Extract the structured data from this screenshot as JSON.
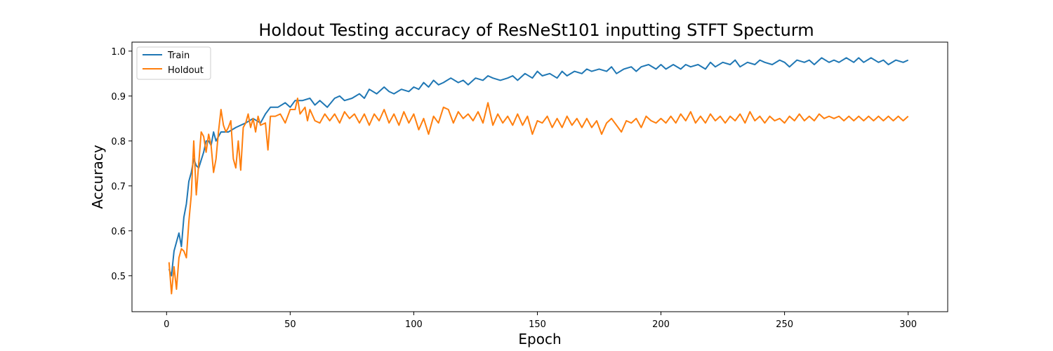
{
  "chart_data": {
    "type": "line",
    "title": "Holdout Testing accuracy of ResNeSt101 inputting STFT Specturm",
    "xlabel": "Epoch",
    "ylabel": "Accuracy",
    "xlim": [
      -14,
      316
    ],
    "ylim": [
      0.42,
      1.02
    ],
    "x_ticks": [
      0,
      50,
      100,
      150,
      200,
      250,
      300
    ],
    "y_ticks": [
      0.5,
      0.6,
      0.7,
      0.8,
      0.9,
      1.0
    ],
    "x_tick_labels": [
      "0",
      "50",
      "100",
      "150",
      "200",
      "250",
      "300"
    ],
    "y_tick_labels": [
      "0.5",
      "0.6",
      "0.7",
      "0.8",
      "0.9",
      "1.0"
    ],
    "grid": false,
    "legend_position": "upper-left",
    "series": [
      {
        "name": "Train",
        "color": "#1f77b4",
        "points": [
          [
            1,
            0.515
          ],
          [
            2,
            0.5
          ],
          [
            3,
            0.555
          ],
          [
            4,
            0.575
          ],
          [
            5,
            0.595
          ],
          [
            6,
            0.565
          ],
          [
            7,
            0.63
          ],
          [
            8,
            0.66
          ],
          [
            9,
            0.71
          ],
          [
            10,
            0.73
          ],
          [
            11,
            0.76
          ],
          [
            12,
            0.745
          ],
          [
            13,
            0.74
          ],
          [
            15,
            0.775
          ],
          [
            16,
            0.8
          ],
          [
            17,
            0.8
          ],
          [
            18,
            0.79
          ],
          [
            19,
            0.82
          ],
          [
            20,
            0.8
          ],
          [
            22,
            0.82
          ],
          [
            25,
            0.82
          ],
          [
            28,
            0.83
          ],
          [
            30,
            0.835
          ],
          [
            32,
            0.84
          ],
          [
            35,
            0.85
          ],
          [
            38,
            0.84
          ],
          [
            40,
            0.86
          ],
          [
            42,
            0.875
          ],
          [
            45,
            0.875
          ],
          [
            48,
            0.885
          ],
          [
            50,
            0.875
          ],
          [
            52,
            0.89
          ],
          [
            55,
            0.89
          ],
          [
            58,
            0.895
          ],
          [
            60,
            0.88
          ],
          [
            62,
            0.89
          ],
          [
            65,
            0.875
          ],
          [
            68,
            0.895
          ],
          [
            70,
            0.9
          ],
          [
            72,
            0.89
          ],
          [
            75,
            0.895
          ],
          [
            78,
            0.905
          ],
          [
            80,
            0.895
          ],
          [
            82,
            0.915
          ],
          [
            85,
            0.905
          ],
          [
            88,
            0.92
          ],
          [
            90,
            0.91
          ],
          [
            92,
            0.905
          ],
          [
            95,
            0.915
          ],
          [
            98,
            0.91
          ],
          [
            100,
            0.92
          ],
          [
            102,
            0.915
          ],
          [
            104,
            0.93
          ],
          [
            106,
            0.92
          ],
          [
            108,
            0.935
          ],
          [
            110,
            0.925
          ],
          [
            112,
            0.93
          ],
          [
            115,
            0.94
          ],
          [
            118,
            0.93
          ],
          [
            120,
            0.935
          ],
          [
            122,
            0.925
          ],
          [
            125,
            0.94
          ],
          [
            128,
            0.935
          ],
          [
            130,
            0.945
          ],
          [
            132,
            0.94
          ],
          [
            135,
            0.935
          ],
          [
            138,
            0.94
          ],
          [
            140,
            0.945
          ],
          [
            142,
            0.935
          ],
          [
            145,
            0.95
          ],
          [
            148,
            0.94
          ],
          [
            150,
            0.955
          ],
          [
            152,
            0.945
          ],
          [
            155,
            0.95
          ],
          [
            158,
            0.94
          ],
          [
            160,
            0.955
          ],
          [
            162,
            0.945
          ],
          [
            165,
            0.955
          ],
          [
            168,
            0.95
          ],
          [
            170,
            0.96
          ],
          [
            172,
            0.955
          ],
          [
            175,
            0.96
          ],
          [
            178,
            0.955
          ],
          [
            180,
            0.965
          ],
          [
            182,
            0.95
          ],
          [
            185,
            0.96
          ],
          [
            188,
            0.965
          ],
          [
            190,
            0.955
          ],
          [
            192,
            0.965
          ],
          [
            195,
            0.97
          ],
          [
            198,
            0.96
          ],
          [
            200,
            0.97
          ],
          [
            202,
            0.96
          ],
          [
            205,
            0.97
          ],
          [
            208,
            0.96
          ],
          [
            210,
            0.97
          ],
          [
            212,
            0.965
          ],
          [
            215,
            0.97
          ],
          [
            218,
            0.96
          ],
          [
            220,
            0.975
          ],
          [
            222,
            0.965
          ],
          [
            225,
            0.975
          ],
          [
            228,
            0.97
          ],
          [
            230,
            0.98
          ],
          [
            232,
            0.965
          ],
          [
            235,
            0.975
          ],
          [
            238,
            0.97
          ],
          [
            240,
            0.98
          ],
          [
            242,
            0.975
          ],
          [
            245,
            0.97
          ],
          [
            248,
            0.98
          ],
          [
            250,
            0.975
          ],
          [
            252,
            0.965
          ],
          [
            255,
            0.98
          ],
          [
            258,
            0.975
          ],
          [
            260,
            0.98
          ],
          [
            262,
            0.97
          ],
          [
            265,
            0.985
          ],
          [
            268,
            0.975
          ],
          [
            270,
            0.98
          ],
          [
            272,
            0.975
          ],
          [
            275,
            0.985
          ],
          [
            278,
            0.975
          ],
          [
            280,
            0.985
          ],
          [
            282,
            0.975
          ],
          [
            285,
            0.985
          ],
          [
            288,
            0.975
          ],
          [
            290,
            0.98
          ],
          [
            292,
            0.97
          ],
          [
            295,
            0.98
          ],
          [
            298,
            0.975
          ],
          [
            300,
            0.98
          ]
        ]
      },
      {
        "name": "Holdout",
        "color": "#ff7f0e",
        "points": [
          [
            1,
            0.53
          ],
          [
            2,
            0.46
          ],
          [
            3,
            0.52
          ],
          [
            4,
            0.47
          ],
          [
            5,
            0.54
          ],
          [
            6,
            0.56
          ],
          [
            7,
            0.555
          ],
          [
            8,
            0.54
          ],
          [
            9,
            0.62
          ],
          [
            10,
            0.68
          ],
          [
            11,
            0.8
          ],
          [
            12,
            0.68
          ],
          [
            13,
            0.75
          ],
          [
            14,
            0.82
          ],
          [
            15,
            0.81
          ],
          [
            16,
            0.775
          ],
          [
            17,
            0.815
          ],
          [
            18,
            0.79
          ],
          [
            19,
            0.73
          ],
          [
            20,
            0.76
          ],
          [
            21,
            0.82
          ],
          [
            22,
            0.87
          ],
          [
            23,
            0.835
          ],
          [
            24,
            0.82
          ],
          [
            25,
            0.83
          ],
          [
            26,
            0.845
          ],
          [
            27,
            0.76
          ],
          [
            28,
            0.74
          ],
          [
            29,
            0.8
          ],
          [
            30,
            0.735
          ],
          [
            31,
            0.83
          ],
          [
            32,
            0.84
          ],
          [
            33,
            0.86
          ],
          [
            34,
            0.83
          ],
          [
            35,
            0.85
          ],
          [
            36,
            0.82
          ],
          [
            37,
            0.855
          ],
          [
            38,
            0.835
          ],
          [
            40,
            0.84
          ],
          [
            41,
            0.78
          ],
          [
            42,
            0.855
          ],
          [
            44,
            0.855
          ],
          [
            46,
            0.86
          ],
          [
            48,
            0.84
          ],
          [
            50,
            0.87
          ],
          [
            52,
            0.87
          ],
          [
            53,
            0.895
          ],
          [
            54,
            0.86
          ],
          [
            56,
            0.875
          ],
          [
            57,
            0.845
          ],
          [
            58,
            0.87
          ],
          [
            60,
            0.845
          ],
          [
            62,
            0.84
          ],
          [
            64,
            0.86
          ],
          [
            66,
            0.845
          ],
          [
            68,
            0.86
          ],
          [
            70,
            0.84
          ],
          [
            72,
            0.865
          ],
          [
            74,
            0.85
          ],
          [
            76,
            0.86
          ],
          [
            78,
            0.84
          ],
          [
            80,
            0.86
          ],
          [
            82,
            0.835
          ],
          [
            84,
            0.86
          ],
          [
            86,
            0.845
          ],
          [
            88,
            0.87
          ],
          [
            90,
            0.84
          ],
          [
            92,
            0.86
          ],
          [
            94,
            0.835
          ],
          [
            96,
            0.865
          ],
          [
            98,
            0.84
          ],
          [
            100,
            0.86
          ],
          [
            102,
            0.825
          ],
          [
            104,
            0.85
          ],
          [
            106,
            0.815
          ],
          [
            108,
            0.855
          ],
          [
            110,
            0.84
          ],
          [
            112,
            0.875
          ],
          [
            114,
            0.87
          ],
          [
            116,
            0.84
          ],
          [
            118,
            0.865
          ],
          [
            120,
            0.85
          ],
          [
            122,
            0.86
          ],
          [
            124,
            0.845
          ],
          [
            126,
            0.865
          ],
          [
            128,
            0.84
          ],
          [
            130,
            0.885
          ],
          [
            132,
            0.835
          ],
          [
            134,
            0.86
          ],
          [
            136,
            0.84
          ],
          [
            138,
            0.855
          ],
          [
            140,
            0.835
          ],
          [
            142,
            0.86
          ],
          [
            144,
            0.835
          ],
          [
            146,
            0.855
          ],
          [
            148,
            0.815
          ],
          [
            150,
            0.845
          ],
          [
            152,
            0.84
          ],
          [
            154,
            0.855
          ],
          [
            156,
            0.83
          ],
          [
            158,
            0.85
          ],
          [
            160,
            0.83
          ],
          [
            162,
            0.855
          ],
          [
            164,
            0.835
          ],
          [
            166,
            0.85
          ],
          [
            168,
            0.83
          ],
          [
            170,
            0.85
          ],
          [
            172,
            0.83
          ],
          [
            174,
            0.845
          ],
          [
            176,
            0.815
          ],
          [
            178,
            0.84
          ],
          [
            180,
            0.85
          ],
          [
            182,
            0.835
          ],
          [
            184,
            0.82
          ],
          [
            186,
            0.845
          ],
          [
            188,
            0.84
          ],
          [
            190,
            0.85
          ],
          [
            192,
            0.83
          ],
          [
            194,
            0.855
          ],
          [
            196,
            0.845
          ],
          [
            198,
            0.84
          ],
          [
            200,
            0.85
          ],
          [
            202,
            0.84
          ],
          [
            204,
            0.855
          ],
          [
            206,
            0.84
          ],
          [
            208,
            0.86
          ],
          [
            210,
            0.845
          ],
          [
            212,
            0.865
          ],
          [
            214,
            0.84
          ],
          [
            216,
            0.855
          ],
          [
            218,
            0.84
          ],
          [
            220,
            0.86
          ],
          [
            222,
            0.845
          ],
          [
            224,
            0.855
          ],
          [
            226,
            0.84
          ],
          [
            228,
            0.855
          ],
          [
            230,
            0.845
          ],
          [
            232,
            0.86
          ],
          [
            234,
            0.84
          ],
          [
            236,
            0.865
          ],
          [
            238,
            0.845
          ],
          [
            240,
            0.855
          ],
          [
            242,
            0.84
          ],
          [
            244,
            0.855
          ],
          [
            246,
            0.845
          ],
          [
            248,
            0.85
          ],
          [
            250,
            0.84
          ],
          [
            252,
            0.855
          ],
          [
            254,
            0.845
          ],
          [
            256,
            0.86
          ],
          [
            258,
            0.845
          ],
          [
            260,
            0.855
          ],
          [
            262,
            0.845
          ],
          [
            264,
            0.86
          ],
          [
            266,
            0.85
          ],
          [
            268,
            0.855
          ],
          [
            270,
            0.85
          ],
          [
            272,
            0.855
          ],
          [
            274,
            0.845
          ],
          [
            276,
            0.855
          ],
          [
            278,
            0.845
          ],
          [
            280,
            0.855
          ],
          [
            282,
            0.845
          ],
          [
            284,
            0.855
          ],
          [
            286,
            0.845
          ],
          [
            288,
            0.855
          ],
          [
            290,
            0.845
          ],
          [
            292,
            0.855
          ],
          [
            294,
            0.845
          ],
          [
            296,
            0.855
          ],
          [
            298,
            0.845
          ],
          [
            300,
            0.855
          ]
        ]
      }
    ]
  }
}
